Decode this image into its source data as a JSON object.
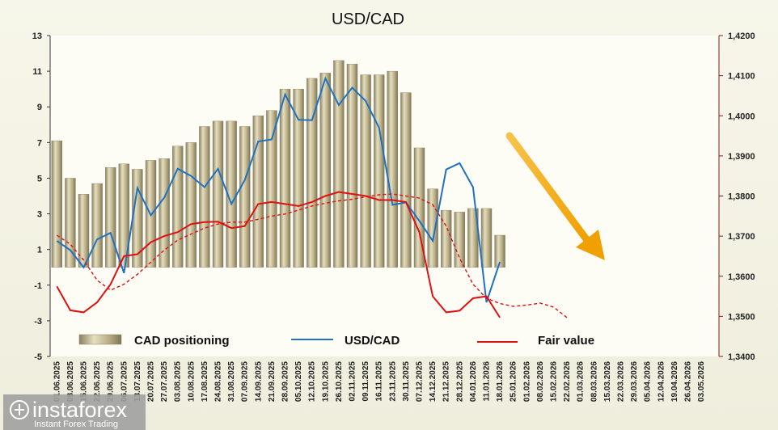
{
  "chart_data": {
    "type": "bar",
    "title": "USD/CAD",
    "categories": [
      "01.06.2025",
      "08.06.2025",
      "15.06.2025",
      "22.06.2025",
      "29.06.2025",
      "06.07.2025",
      "13.07.2025",
      "20.07.2025",
      "27.07.2025",
      "03.08.2025",
      "10.08.2025",
      "17.08.2025",
      "24.08.2025",
      "31.08.2025",
      "07.09.2025",
      "14.09.2025",
      "21.09.2025",
      "28.09.2025",
      "05.10.2025",
      "12.10.2025",
      "19.10.2025",
      "26.10.2025",
      "02.11.2025",
      "09.11.2025",
      "16.11.2025",
      "23.11.2025",
      "30.11.2025",
      "07.12.2025",
      "14.12.2025",
      "21.12.2025",
      "28.12.2025",
      "04.01.2026",
      "11.01.2026",
      "18.01.2026",
      "25.01.2026",
      "01.02.2026",
      "08.02.2026",
      "15.02.2026",
      "22.02.2026",
      "01.03.2026",
      "08.03.2026",
      "15.03.2026",
      "22.03.2026",
      "29.03.2026",
      "05.04.2026",
      "12.04.2026",
      "19.04.2026",
      "26.04.2026",
      "03.05.2026"
    ],
    "left_axis": {
      "min": -5,
      "max": 13,
      "ticks": [
        "13",
        "11",
        "9",
        "7",
        "5",
        "3",
        "1",
        "-1",
        "-3",
        "-5"
      ]
    },
    "right_axis": {
      "min": 1.34,
      "max": 1.42,
      "ticks": [
        "1,4200",
        "1,4100",
        "1,4000",
        "1,3900",
        "1,3800",
        "1,3700",
        "1,3600",
        "1,3500",
        "1,3400"
      ]
    },
    "series": [
      {
        "name": "CAD positioning",
        "type": "bar",
        "axis": "left",
        "color": "#b8ad85",
        "values": [
          7.1,
          5.0,
          4.1,
          4.7,
          5.6,
          5.8,
          5.5,
          6.0,
          6.1,
          6.8,
          7.0,
          7.9,
          8.2,
          8.2,
          7.9,
          8.5,
          8.8,
          10.0,
          10.0,
          10.6,
          10.9,
          11.6,
          11.4,
          10.8,
          10.8,
          11.0,
          9.8,
          6.7,
          4.4,
          3.2,
          3.1,
          3.3,
          3.3,
          1.8,
          null,
          null,
          null,
          null,
          null,
          null,
          null,
          null,
          null,
          null,
          null,
          null,
          null,
          null,
          null
        ]
      },
      {
        "name": "USD/CAD",
        "type": "line",
        "axis": "right",
        "color": "#1f72c0",
        "values": [
          1.3688,
          1.3665,
          1.3622,
          1.3692,
          1.3708,
          1.3608,
          1.382,
          1.3752,
          1.3796,
          1.3868,
          1.385,
          1.3822,
          1.3868,
          1.378,
          1.384,
          1.3936,
          1.3941,
          1.4053,
          1.399,
          1.3989,
          1.4093,
          1.4027,
          1.407,
          1.4037,
          1.397,
          1.3778,
          1.3784,
          1.3738,
          1.3688,
          1.3866,
          1.3882,
          1.3822,
          1.3535,
          1.3636,
          null,
          null,
          null,
          null,
          null,
          null,
          null,
          null,
          null,
          null,
          null,
          null,
          null,
          null,
          null
        ]
      },
      {
        "name": "Fair value",
        "type": "line",
        "axis": "right",
        "color": "#e01010",
        "values": [
          1.3575,
          1.3515,
          1.351,
          1.3535,
          1.358,
          1.365,
          1.3655,
          1.3685,
          1.37,
          1.371,
          1.373,
          1.3735,
          1.3736,
          1.372,
          1.3725,
          1.378,
          1.3785,
          1.378,
          1.3775,
          1.3785,
          1.38,
          1.381,
          1.3805,
          1.38,
          1.379,
          1.379,
          1.3785,
          1.371,
          1.355,
          1.351,
          1.3514,
          1.3545,
          1.355,
          1.3497,
          null,
          null,
          null,
          null,
          null,
          null,
          null,
          null,
          null,
          null,
          null,
          null,
          null,
          null,
          null
        ]
      },
      {
        "name": "Fair value (projection)",
        "type": "line",
        "axis": "right",
        "color": "#e01010",
        "dashed": true,
        "values": [
          1.3702,
          1.368,
          1.364,
          1.359,
          1.3565,
          1.358,
          1.3605,
          1.3635,
          1.3665,
          1.369,
          1.3705,
          1.372,
          1.373,
          1.3735,
          1.3735,
          1.3742,
          1.375,
          1.3755,
          1.3765,
          1.3775,
          1.3782,
          1.3788,
          1.3792,
          1.3798,
          1.3803,
          1.3805,
          1.38,
          1.3795,
          1.3778,
          1.3725,
          1.3645,
          1.358,
          1.3545,
          1.3532,
          1.3525,
          1.3528,
          1.3533,
          1.3523,
          1.3497,
          null,
          null,
          null,
          null,
          null,
          null,
          null,
          null,
          null,
          null
        ]
      }
    ],
    "legend": [
      {
        "label": "CAD positioning"
      },
      {
        "label": "USD/CAD"
      },
      {
        "label": "Fair value"
      }
    ],
    "annotation": {
      "type": "arrow",
      "direction": "down",
      "color": "#f5a800"
    },
    "grid": false,
    "legend_position": "bottom"
  },
  "logo": {
    "name": "instaforex",
    "tagline": "Instant Forex Trading"
  },
  "colors": {
    "plot_background": "#fdfcf5",
    "bar_fill": "#b8ad85",
    "bar_shade": "#8a8164",
    "usdcad_line": "#1f72c0",
    "fair_value_line": "#e01010",
    "arrow": "#f5a800",
    "logo_box": "#a0a0a0"
  }
}
